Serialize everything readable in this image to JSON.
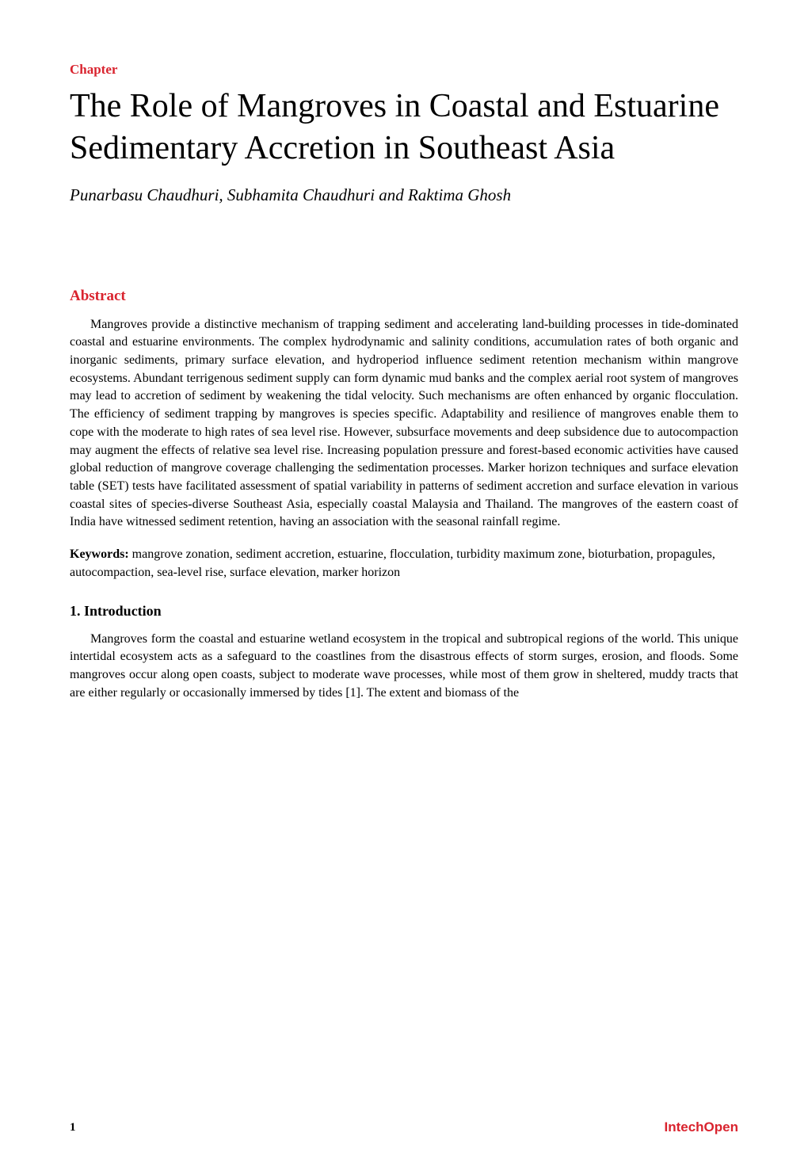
{
  "chapter": {
    "label": "Chapter",
    "title": "The Role of Mangroves in Coastal and Estuarine Sedimentary Accretion in Southeast Asia",
    "authors": "Punarbasu Chaudhuri, Subhamita Chaudhuri and Raktima Ghosh"
  },
  "abstract": {
    "heading": "Abstract",
    "text": "Mangroves provide a distinctive mechanism of trapping sediment and accelerating land-building processes in tide-dominated coastal and estuarine environments. The complex hydrodynamic and salinity conditions, accumulation rates of both organic and inorganic sediments, primary surface elevation, and hydroperiod influence sediment retention mechanism within mangrove ecosystems. Abundant terrigenous sediment supply can form dynamic mud banks and the complex aerial root system of mangroves may lead to accretion of sediment by weakening the tidal velocity. Such mechanisms are often enhanced by organic flocculation. The efficiency of sediment trapping by mangroves is species specific. Adaptability and resilience of mangroves enable them to cope with the moderate to high rates of sea level rise. However, subsurface movements and deep subsidence due to autocompaction may augment the effects of relative sea level rise. Increasing population pressure and forest-based economic activities have caused global reduction of mangrove coverage challenging the sedimentation processes. Marker horizon techniques and surface elevation table (SET) tests have facilitated assessment of spatial variability in patterns of sediment accretion and surface elevation in various coastal sites of species-diverse Southeast Asia, especially coastal Malaysia and Thailand. The mangroves of the eastern coast of India have witnessed sediment retention, having an association with the seasonal rainfall regime."
  },
  "keywords": {
    "label": "Keywords:",
    "text": " mangrove zonation, sediment accretion, estuarine, flocculation, turbidity maximum zone, bioturbation, propagules, autocompaction, sea-level rise, surface elevation, marker horizon"
  },
  "introduction": {
    "heading": "1. Introduction",
    "text": "Mangroves form the coastal and estuarine wetland ecosystem in the tropical and subtropical regions of the world. This unique intertidal ecosystem acts as a safeguard to the coastlines from the disastrous effects of storm surges, erosion, and floods. Some mangroves occur along open coasts, subject to moderate wave processes, while most of them grow in sheltered, muddy tracts that are either regularly or occasionally immersed by tides [1]. The extent and biomass of the"
  },
  "footer": {
    "page_number": "1",
    "publisher": "IntechOpen"
  },
  "colors": {
    "accent": "#d9232e",
    "text": "#000000",
    "background": "#ffffff"
  },
  "typography": {
    "font_family": "Georgia, serif",
    "title_fontsize": 42,
    "author_fontsize": 21,
    "heading_fontsize": 19,
    "body_fontsize": 16
  }
}
